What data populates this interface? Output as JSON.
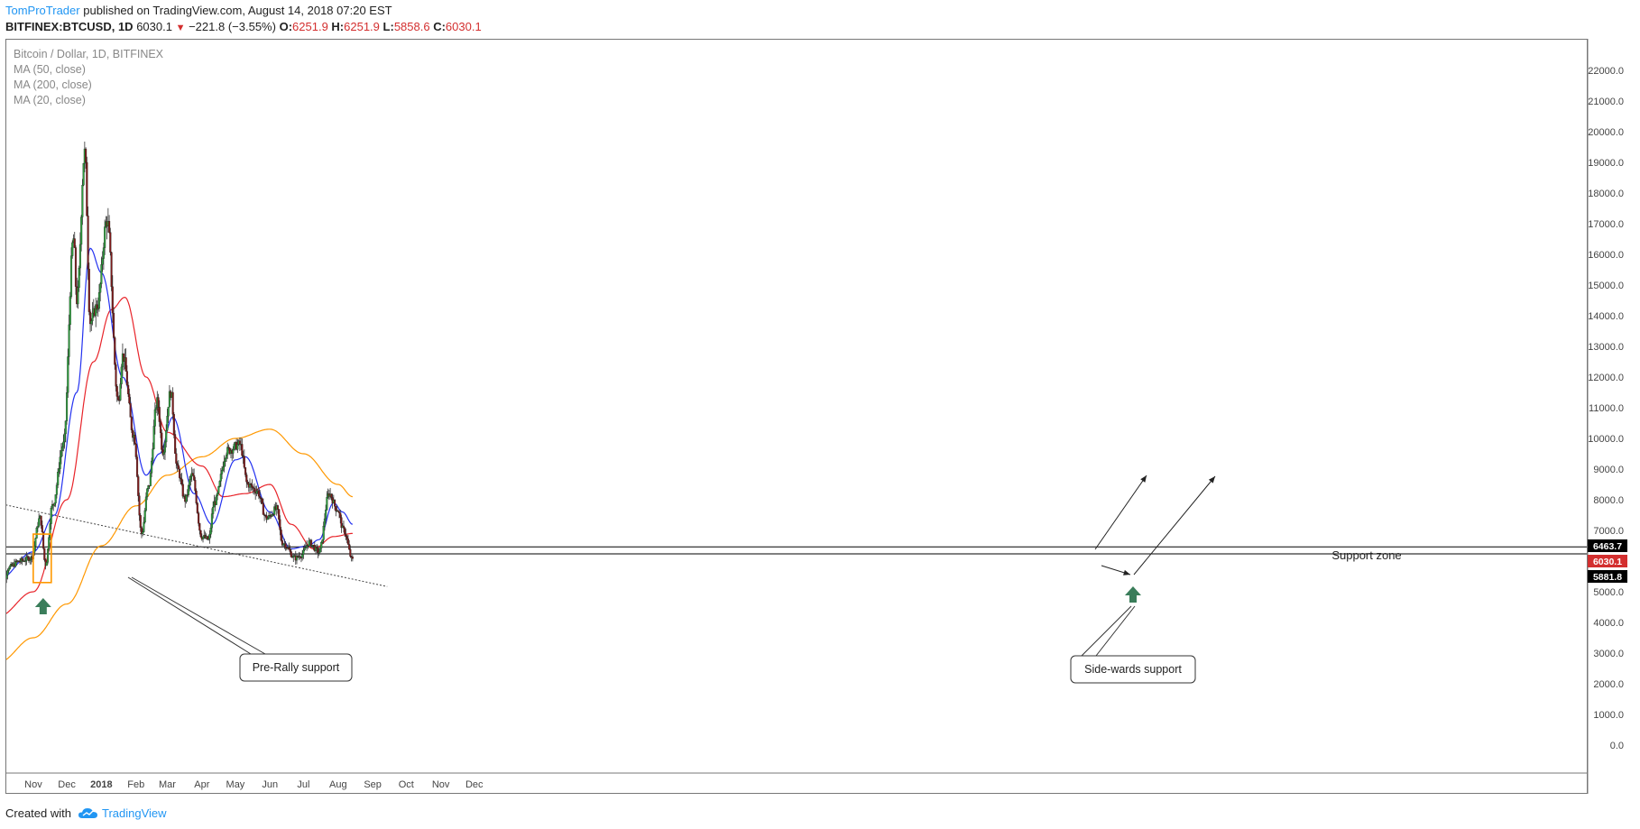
{
  "header": {
    "author": "TomProTrader",
    "published": "published on TradingView.com, August 14, 2018 07:20 EST",
    "symbol": "BITFINEX:BTCUSD, 1D",
    "last": "6030.1",
    "change": "−221.8 (−3.55%)",
    "o_label": "O:",
    "o_value": "6251.9",
    "h_label": "H:",
    "h_value": "6251.9",
    "l_label": "L:",
    "l_value": "5858.6",
    "c_label": "C:",
    "c_value": "6030.1"
  },
  "legend": {
    "title": "Bitcoin / Dollar, 1D, BITFINEX",
    "ma50": "MA (50, close)",
    "ma200": "MA (200, close)",
    "ma20": "MA (20, close)"
  },
  "footer": {
    "created": "Created with",
    "brand": "TradingView"
  },
  "colors": {
    "up": "#2e9e3e",
    "down": "#7d1a1a",
    "ma20": "#2432f0",
    "ma50": "#e8242a",
    "ma200": "#ff9800",
    "arrow": "#3a7d5a",
    "box": "#ff9800"
  },
  "chart_data": {
    "type": "candlestick",
    "y_axis": {
      "ticks": [
        "22000.0",
        "21000.0",
        "20000.0",
        "19000.0",
        "18000.0",
        "17000.0",
        "16000.0",
        "15000.0",
        "14000.0",
        "13000.0",
        "12000.0",
        "11000.0",
        "10000.0",
        "9000.0",
        "8000.0",
        "7000.0",
        "6000.0",
        "5000.0",
        "4000.0",
        "3000.0",
        "2000.0",
        "1000.0",
        "0.0"
      ],
      "tick_values": [
        22000,
        21000,
        20000,
        19000,
        18000,
        17000,
        16000,
        15000,
        14000,
        13000,
        12000,
        11000,
        10000,
        9000,
        8000,
        7000,
        6000,
        5000,
        4000,
        3000,
        2000,
        1000,
        0
      ],
      "range": [
        -1000,
        23000
      ]
    },
    "x_axis": {
      "labels": [
        "Nov",
        "Dec",
        "2018",
        "Feb",
        "Mar",
        "Apr",
        "May",
        "Jun",
        "Jul",
        "Aug",
        "Sep",
        "Oct",
        "Nov",
        "Dec"
      ],
      "dates": [
        "2017-11-01",
        "2017-12-01",
        "2018-01-01",
        "2018-02-01",
        "2018-03-01",
        "2018-04-01",
        "2018-05-01",
        "2018-06-01",
        "2018-07-01",
        "2018-08-01",
        "2018-09-01",
        "2018-10-01",
        "2018-11-01",
        "2018-12-01"
      ],
      "bold": [
        "2018"
      ],
      "range": [
        "2017-10-01",
        "2018-12-31"
      ]
    },
    "price_tags": [
      {
        "value": 6463.7,
        "label": "6463.7",
        "bg": "#000000"
      },
      {
        "value": 6030.1,
        "label": "6030.1",
        "bg": "#d32f2f"
      },
      {
        "value": 5881.8,
        "label": "5881.8",
        "bg": "#000000"
      }
    ],
    "support_zone": {
      "top": 6463.7,
      "bottom": 5881.8,
      "label": "Support zone"
    },
    "trendline": {
      "start": [
        "2017-10-01",
        7880
      ],
      "end": [
        "2018-09-14",
        5170
      ]
    },
    "ma_keypoints": {
      "ma20": [
        [
          "2017-10-01",
          5400
        ],
        [
          "2017-11-01",
          6300
        ],
        [
          "2017-11-20",
          7500
        ],
        [
          "2017-12-10",
          11500
        ],
        [
          "2017-12-22",
          16200
        ],
        [
          "2018-01-01",
          15400
        ],
        [
          "2018-01-20",
          12000
        ],
        [
          "2018-02-10",
          8800
        ],
        [
          "2018-02-22",
          9500
        ],
        [
          "2018-03-06",
          10700
        ],
        [
          "2018-03-25",
          8200
        ],
        [
          "2018-04-10",
          7200
        ],
        [
          "2018-05-01",
          9300
        ],
        [
          "2018-05-10",
          9400
        ],
        [
          "2018-06-01",
          7600
        ],
        [
          "2018-06-20",
          6400
        ],
        [
          "2018-07-05",
          6500
        ],
        [
          "2018-07-15",
          6700
        ],
        [
          "2018-07-28",
          7900
        ],
        [
          "2018-08-05",
          7600
        ],
        [
          "2018-08-14",
          7200
        ]
      ],
      "ma50": [
        [
          "2017-10-01",
          4200
        ],
        [
          "2017-11-01",
          5000
        ],
        [
          "2017-12-01",
          8000
        ],
        [
          "2017-12-25",
          12500
        ],
        [
          "2018-01-10",
          14200
        ],
        [
          "2018-01-22",
          14600
        ],
        [
          "2018-02-10",
          12000
        ],
        [
          "2018-03-01",
          10200
        ],
        [
          "2018-04-01",
          9100
        ],
        [
          "2018-04-20",
          8100
        ],
        [
          "2018-05-10",
          8200
        ],
        [
          "2018-06-01",
          8500
        ],
        [
          "2018-06-20",
          7200
        ],
        [
          "2018-07-10",
          6400
        ],
        [
          "2018-07-28",
          6800
        ],
        [
          "2018-08-14",
          6900
        ]
      ],
      "ma200": [
        [
          "2017-10-01",
          2700
        ],
        [
          "2017-11-01",
          3500
        ],
        [
          "2017-12-01",
          4600
        ],
        [
          "2018-01-01",
          6500
        ],
        [
          "2018-02-01",
          7800
        ],
        [
          "2018-03-01",
          8800
        ],
        [
          "2018-04-01",
          9400
        ],
        [
          "2018-05-01",
          10000
        ],
        [
          "2018-06-01",
          10300
        ],
        [
          "2018-07-01",
          9500
        ],
        [
          "2018-08-01",
          8500
        ],
        [
          "2018-08-14",
          8100
        ]
      ]
    },
    "price_keypoints": [
      [
        "2017-10-01",
        4300
      ],
      [
        "2017-10-10",
        5800
      ],
      [
        "2017-10-20",
        6000
      ],
      [
        "2017-10-30",
        6100
      ],
      [
        "2017-11-07",
        7400
      ],
      [
        "2017-11-12",
        5900
      ],
      [
        "2017-11-18",
        7800
      ],
      [
        "2017-11-28",
        9800
      ],
      [
        "2017-12-07",
        16500
      ],
      [
        "2017-12-10",
        14500
      ],
      [
        "2017-12-17",
        19300
      ],
      [
        "2017-12-22",
        13800
      ],
      [
        "2017-12-28",
        14300
      ],
      [
        "2018-01-06",
        17100
      ],
      [
        "2018-01-16",
        11200
      ],
      [
        "2018-01-20",
        12700
      ],
      [
        "2018-01-30",
        10100
      ],
      [
        "2018-02-06",
        6900
      ],
      [
        "2018-02-12",
        8400
      ],
      [
        "2018-02-20",
        11200
      ],
      [
        "2018-02-25",
        9600
      ],
      [
        "2018-03-04",
        11500
      ],
      [
        "2018-03-10",
        9000
      ],
      [
        "2018-03-17",
        8000
      ],
      [
        "2018-03-23",
        8800
      ],
      [
        "2018-04-01",
        6800
      ],
      [
        "2018-04-07",
        6700
      ],
      [
        "2018-04-12",
        7900
      ],
      [
        "2018-04-24",
        9600
      ],
      [
        "2018-05-05",
        9800
      ],
      [
        "2018-05-12",
        8500
      ],
      [
        "2018-05-20",
        8300
      ],
      [
        "2018-05-29",
        7400
      ],
      [
        "2018-06-07",
        7700
      ],
      [
        "2018-06-12",
        6600
      ],
      [
        "2018-06-24",
        6100
      ],
      [
        "2018-06-29",
        6200
      ],
      [
        "2018-07-06",
        6600
      ],
      [
        "2018-07-15",
        6300
      ],
      [
        "2018-07-24",
        8200
      ],
      [
        "2018-07-31",
        7700
      ],
      [
        "2018-08-06",
        7000
      ],
      [
        "2018-08-14",
        6030
      ]
    ],
    "annotations": [
      {
        "text": "Pre-Rally support",
        "type": "callout"
      },
      {
        "text": "Side-wards support",
        "type": "callout"
      }
    ]
  }
}
